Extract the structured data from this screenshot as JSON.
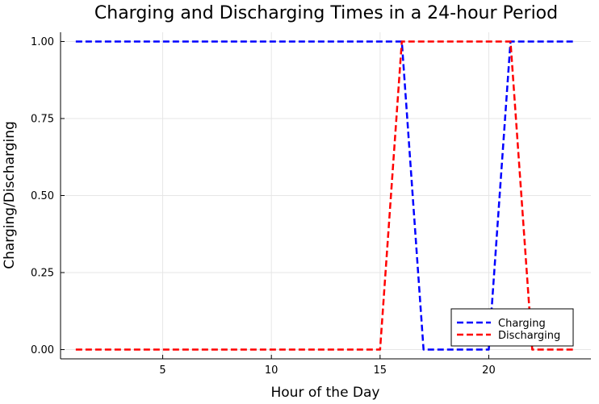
{
  "chart_data": {
    "type": "line",
    "title": "Charging and Discharging Times in a 24-hour Period",
    "xlabel": "Hour of the Day",
    "ylabel": "Charging/Discharging",
    "xlim": [
      0.3,
      24.7
    ],
    "ylim": [
      -0.03,
      1.03
    ],
    "xticks": [
      5,
      10,
      15,
      20
    ],
    "yticks": [
      0.0,
      0.25,
      0.5,
      0.75,
      1.0
    ],
    "ytick_labels": [
      "0.00",
      "0.25",
      "0.50",
      "0.75",
      "1.00"
    ],
    "grid": true,
    "legend_position": "bottom-right",
    "x": [
      1,
      2,
      3,
      4,
      5,
      6,
      7,
      8,
      9,
      10,
      11,
      12,
      13,
      14,
      15,
      16,
      17,
      18,
      19,
      20,
      21,
      22,
      23,
      24
    ],
    "series": [
      {
        "name": "Charging",
        "color": "#0000ff",
        "style": "dashed",
        "values": [
          1,
          1,
          1,
          1,
          1,
          1,
          1,
          1,
          1,
          1,
          1,
          1,
          1,
          1,
          1,
          1,
          0,
          0,
          0,
          0,
          1,
          1,
          1,
          1
        ]
      },
      {
        "name": "Discharging",
        "color": "#ff0000",
        "style": "dashed",
        "values": [
          0,
          0,
          0,
          0,
          0,
          0,
          0,
          0,
          0,
          0,
          0,
          0,
          0,
          0,
          0,
          1,
          1,
          1,
          1,
          1,
          1,
          0,
          0,
          0
        ]
      }
    ]
  }
}
